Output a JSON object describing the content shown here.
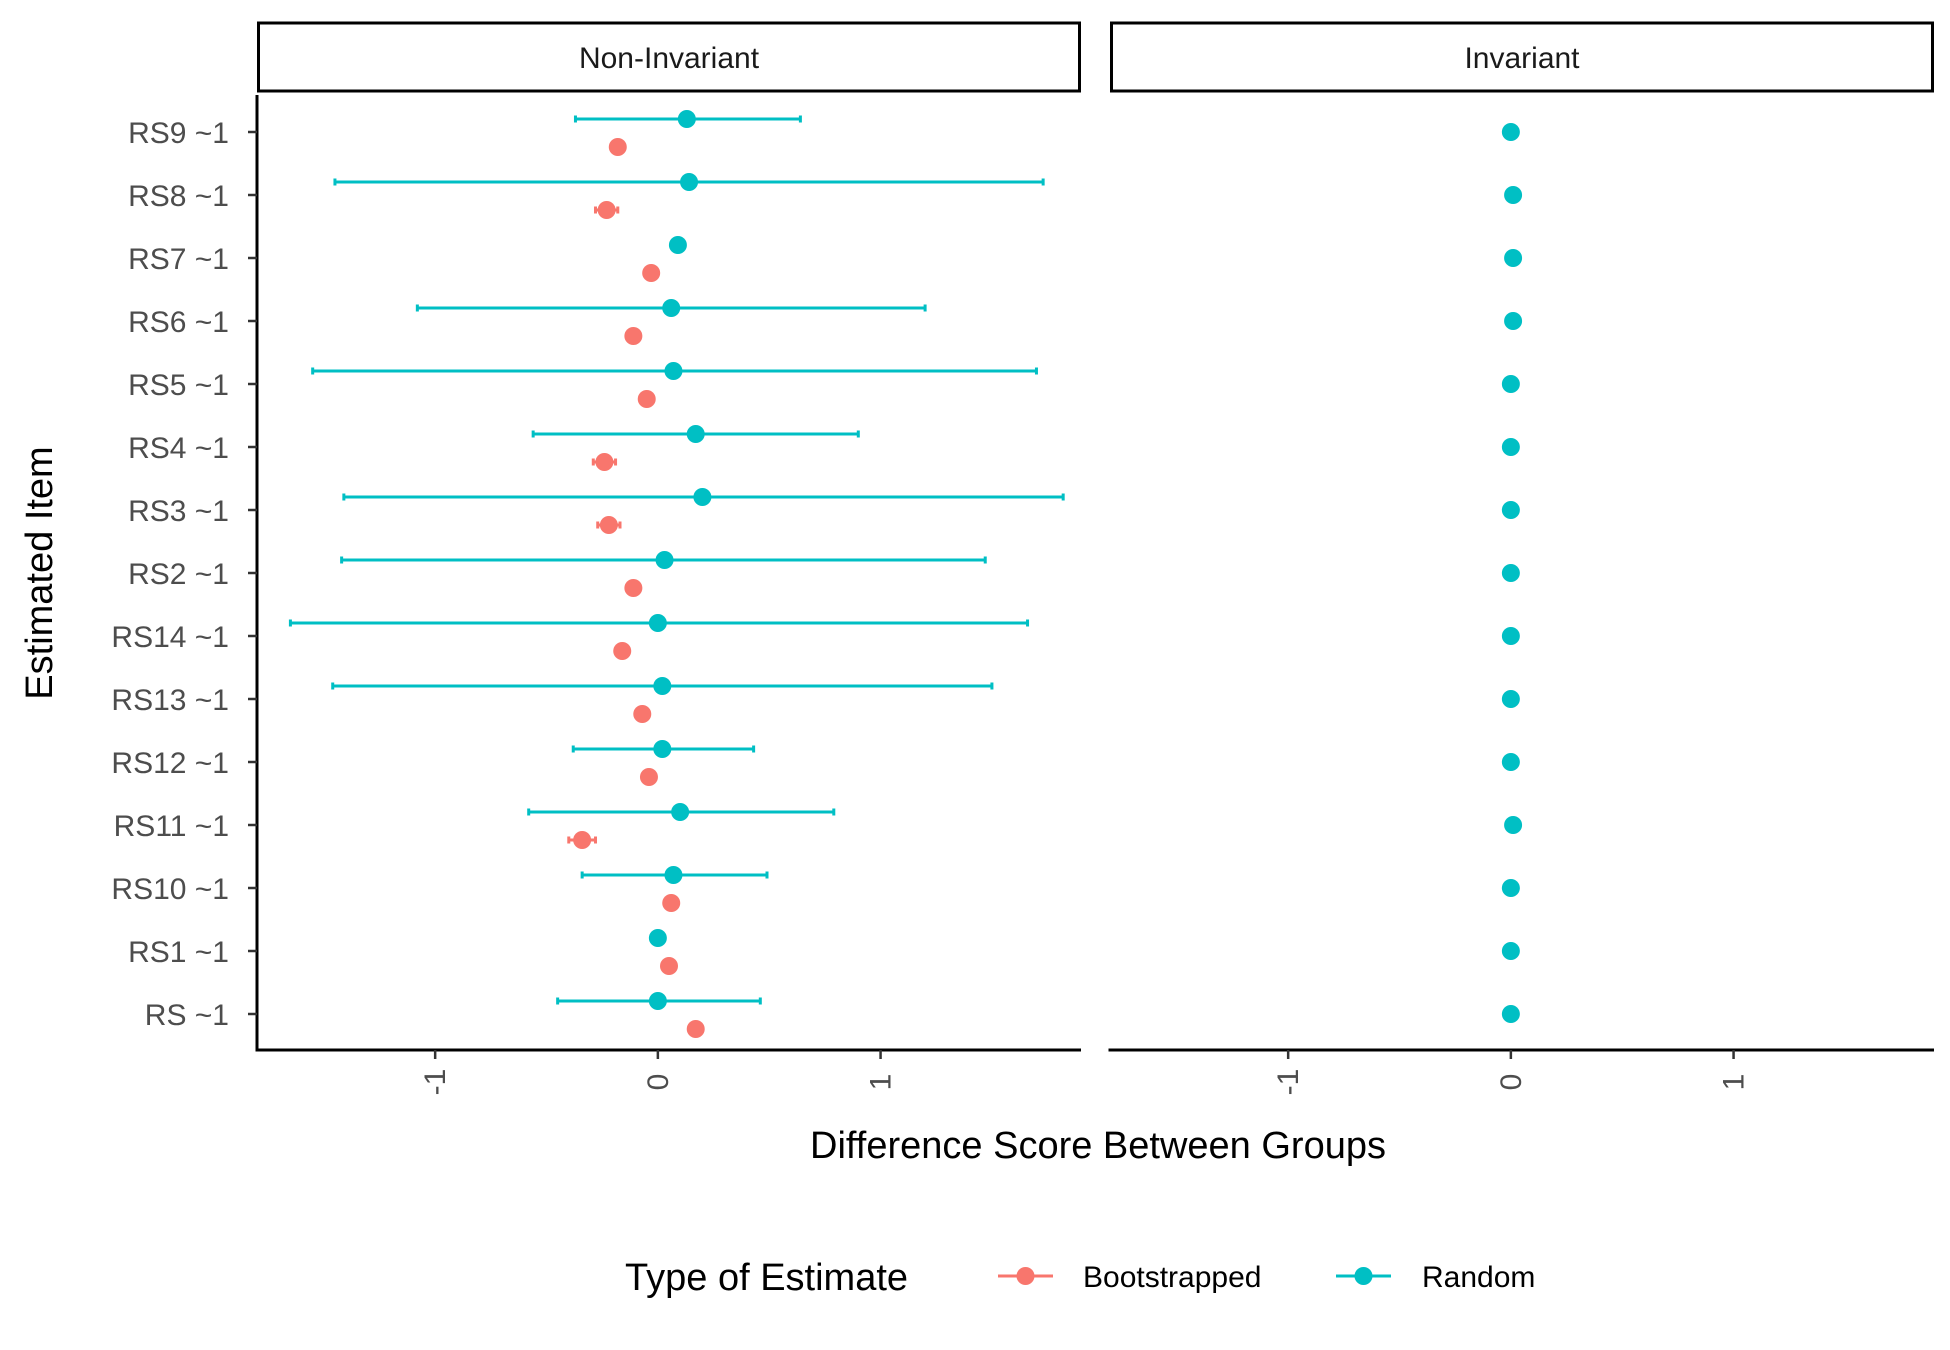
{
  "chart_data": {
    "type": "scatter",
    "subtype": "dot-and-errorbar, faceted",
    "xlabel": "Difference Score Between Groups",
    "ylabel": "Estimated Item",
    "xlim": [
      -1.8,
      1.9
    ],
    "x_ticks": [
      "-1",
      "0",
      "1"
    ],
    "x_tick_values": [
      -1,
      0,
      1
    ],
    "categories": [
      "RS9 ~1",
      "RS8 ~1",
      "RS7 ~1",
      "RS6 ~1",
      "RS5 ~1",
      "RS4 ~1",
      "RS3 ~1",
      "RS2 ~1",
      "RS14 ~1",
      "RS13 ~1",
      "RS12 ~1",
      "RS11 ~1",
      "RS10 ~1",
      "RS1 ~1",
      "RS ~1"
    ],
    "legend": {
      "title": "Type of Estimate",
      "position": "bottom",
      "entries": [
        "Bootstrapped",
        "Random"
      ]
    },
    "colors": {
      "Bootstrapped": "#F8766D",
      "Random": "#00BFC4"
    },
    "grid": false,
    "facets": [
      {
        "name": "Non-Invariant",
        "series": [
          {
            "name": "Bootstrapped",
            "values": [
              -0.18,
              -0.23,
              -0.03,
              -0.11,
              -0.05,
              -0.24,
              -0.22,
              -0.11,
              -0.16,
              -0.07,
              -0.04,
              -0.34,
              0.06,
              0.05,
              0.17
            ],
            "lower": [
              -0.18,
              -0.28,
              -0.03,
              -0.11,
              -0.05,
              -0.29,
              -0.27,
              -0.11,
              -0.16,
              -0.07,
              -0.04,
              -0.4,
              0.06,
              0.05,
              0.17
            ],
            "upper": [
              -0.18,
              -0.18,
              -0.03,
              -0.11,
              -0.05,
              -0.19,
              -0.17,
              -0.11,
              -0.16,
              -0.07,
              -0.04,
              -0.28,
              0.06,
              0.05,
              0.17
            ]
          },
          {
            "name": "Random",
            "values": [
              0.13,
              0.14,
              0.09,
              0.06,
              0.07,
              0.17,
              0.2,
              0.03,
              0.0,
              0.02,
              0.02,
              0.1,
              0.07,
              0.0,
              0.0
            ],
            "lower": [
              -0.37,
              -1.45,
              0.09,
              -1.08,
              -1.55,
              -0.56,
              -1.41,
              -1.42,
              -1.65,
              -1.46,
              -0.38,
              -0.58,
              -0.34,
              0.0,
              -0.45
            ],
            "upper": [
              0.64,
              1.73,
              0.09,
              1.2,
              1.7,
              0.9,
              1.82,
              1.47,
              1.66,
              1.5,
              0.43,
              0.79,
              0.49,
              0.0,
              0.46
            ]
          }
        ]
      },
      {
        "name": "Invariant",
        "series": [
          {
            "name": "Random",
            "values": [
              0.0,
              0.01,
              0.01,
              0.01,
              0.0,
              0.0,
              0.0,
              0.0,
              0.0,
              0.0,
              0.0,
              0.01,
              0.0,
              0.0,
              0.0
            ],
            "lower": [
              0.0,
              0.01,
              0.01,
              0.01,
              0.0,
              0.0,
              0.0,
              0.0,
              0.0,
              0.0,
              0.0,
              0.01,
              0.0,
              0.0,
              0.0
            ],
            "upper": [
              0.0,
              0.01,
              0.01,
              0.01,
              0.0,
              0.0,
              0.0,
              0.0,
              0.0,
              0.0,
              0.0,
              0.01,
              0.0,
              0.0,
              0.0
            ]
          }
        ]
      }
    ]
  }
}
